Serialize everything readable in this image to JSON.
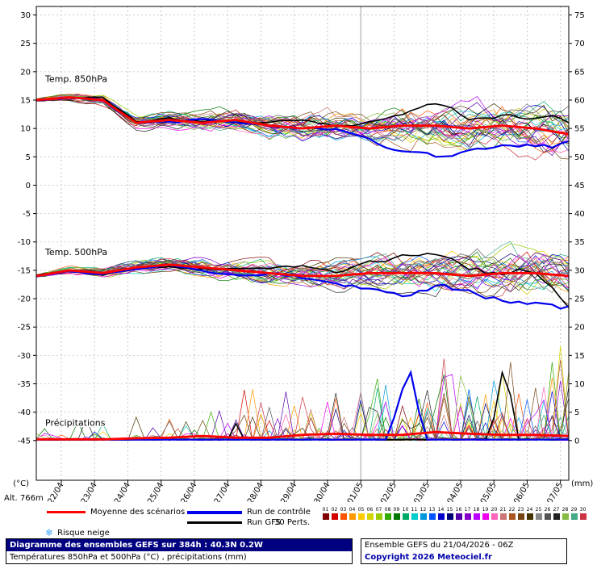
{
  "legend": {
    "mean": "Moyenne des scénarios",
    "control": "Run de contrôle",
    "gfs": "Run GFS",
    "perts": "30 Perts.",
    "snow": "Risque neige"
  },
  "footer": {
    "title": "Diagramme des ensembles GEFS sur 384h : 40.3N 0.2W",
    "subtitle": "Températures 850hPa et 500hPa (°C) , précipitations (mm)",
    "run_info": "Ensemble GEFS du 21/04/2026 - 06Z",
    "copyright": "Copyright 2026 Meteociel.fr"
  },
  "alt_label": "Alt. 766m",
  "chart_data": {
    "type": "line",
    "title": "Diagramme des ensembles GEFS sur 384h : 40.3N 0.2W",
    "x_tick_labels": [
      "22/04",
      "23/04",
      "24/04",
      "25/04",
      "26/04",
      "27/04",
      "28/04",
      "29/04",
      "30/04",
      "01/05",
      "02/05",
      "03/05",
      "04/05",
      "05/05",
      "06/05",
      "07/05"
    ],
    "left_axis": {
      "unit": "(°C)",
      "ticks": [
        30,
        25,
        20,
        15,
        10,
        5,
        0,
        -5,
        -10,
        -15,
        -20,
        -25,
        -30,
        -35,
        -40,
        -45
      ]
    },
    "right_axis": {
      "unit": "(mm)",
      "ticks": [
        75,
        70,
        65,
        60,
        55,
        50,
        45,
        40,
        35,
        30,
        25,
        20,
        15,
        10,
        5,
        0
      ]
    },
    "grid": true,
    "legend_position": "bottom",
    "sections": {
      "t850": {
        "label": "Temp. 850hPa",
        "mean_anchors": [
          15,
          15.5,
          15,
          11,
          11.5,
          11,
          11.5,
          10.5,
          10,
          10.5,
          10,
          10.5,
          10.5,
          10,
          10.5,
          10,
          9
        ],
        "control_anchors": [
          15,
          15.5,
          15,
          11,
          11,
          11.5,
          11,
          10.5,
          10,
          9.5,
          7.5,
          5.5,
          5,
          6.5,
          7,
          6.5,
          7
        ],
        "gfs_anchors": [
          15,
          15.5,
          15.5,
          11,
          11.5,
          11,
          11,
          10.5,
          11,
          10,
          11,
          12,
          13.5,
          11,
          11.5,
          12,
          11
        ],
        "spread0": 0.4,
        "spread1": 4.2
      },
      "t500": {
        "label": "Temp. 500hPa",
        "mean_anchors": [
          -16,
          -15,
          -15.5,
          -14.5,
          -14,
          -14.5,
          -15,
          -15.5,
          -16,
          -16,
          -15.5,
          -15.5,
          -15.5,
          -16,
          -15.5,
          -15.5,
          -16
        ],
        "control_anchors": [
          -16,
          -15,
          -15.5,
          -14.5,
          -14,
          -15,
          -15.5,
          -15,
          -16,
          -17,
          -18,
          -19.5,
          -18,
          -19,
          -20,
          -20,
          -21
        ],
        "gfs_anchors": [
          -16,
          -15,
          -15.5,
          -14.5,
          -14.5,
          -14.5,
          -15,
          -15.5,
          -15,
          -16,
          -14,
          -13,
          -12.5,
          -15,
          -16,
          -15,
          -21
        ],
        "spread0": 0.4,
        "spread1": 4.0
      },
      "precip": {
        "label": "Précipitations",
        "mean_anchors": [
          0.2,
          0.2,
          0.2,
          0.4,
          0.5,
          0.8,
          0.5,
          0.5,
          1,
          1.2,
          1,
          1,
          1.5,
          1.2,
          1,
          1,
          0.8
        ],
        "control_spikes": [
          [
            43,
            4
          ],
          [
            44,
            9
          ],
          [
            45,
            12
          ],
          [
            46,
            5
          ]
        ],
        "gfs_spikes": [
          [
            24,
            3
          ],
          [
            55,
            4
          ],
          [
            56,
            12
          ],
          [
            57,
            8
          ]
        ]
      }
    },
    "series_styles": {
      "mean_color": "#ff0000",
      "control_color": "#0000ee",
      "gfs_color": "#000000"
    },
    "pert_labels": [
      "01",
      "02",
      "03",
      "04",
      "05",
      "06",
      "07",
      "08",
      "09",
      "10",
      "11",
      "12",
      "13",
      "14",
      "15",
      "16",
      "17",
      "18",
      "19",
      "20",
      "21",
      "22",
      "23",
      "24",
      "25",
      "26",
      "27",
      "28",
      "29",
      "30"
    ],
    "pert_colors": [
      "#7f0000",
      "#d40000",
      "#ff5500",
      "#ff9900",
      "#ffcc00",
      "#d4d400",
      "#99cc00",
      "#33aa00",
      "#007700",
      "#00aa66",
      "#00cccc",
      "#0099dd",
      "#0055ff",
      "#0000cc",
      "#000077",
      "#5500aa",
      "#8800cc",
      "#bb00ff",
      "#ee00ee",
      "#ff66bb",
      "#cc7777",
      "#aa5522",
      "#774411",
      "#443300",
      "#888888",
      "#555555",
      "#222222",
      "#88bb44",
      "#44aa88",
      "#cc3344"
    ]
  }
}
